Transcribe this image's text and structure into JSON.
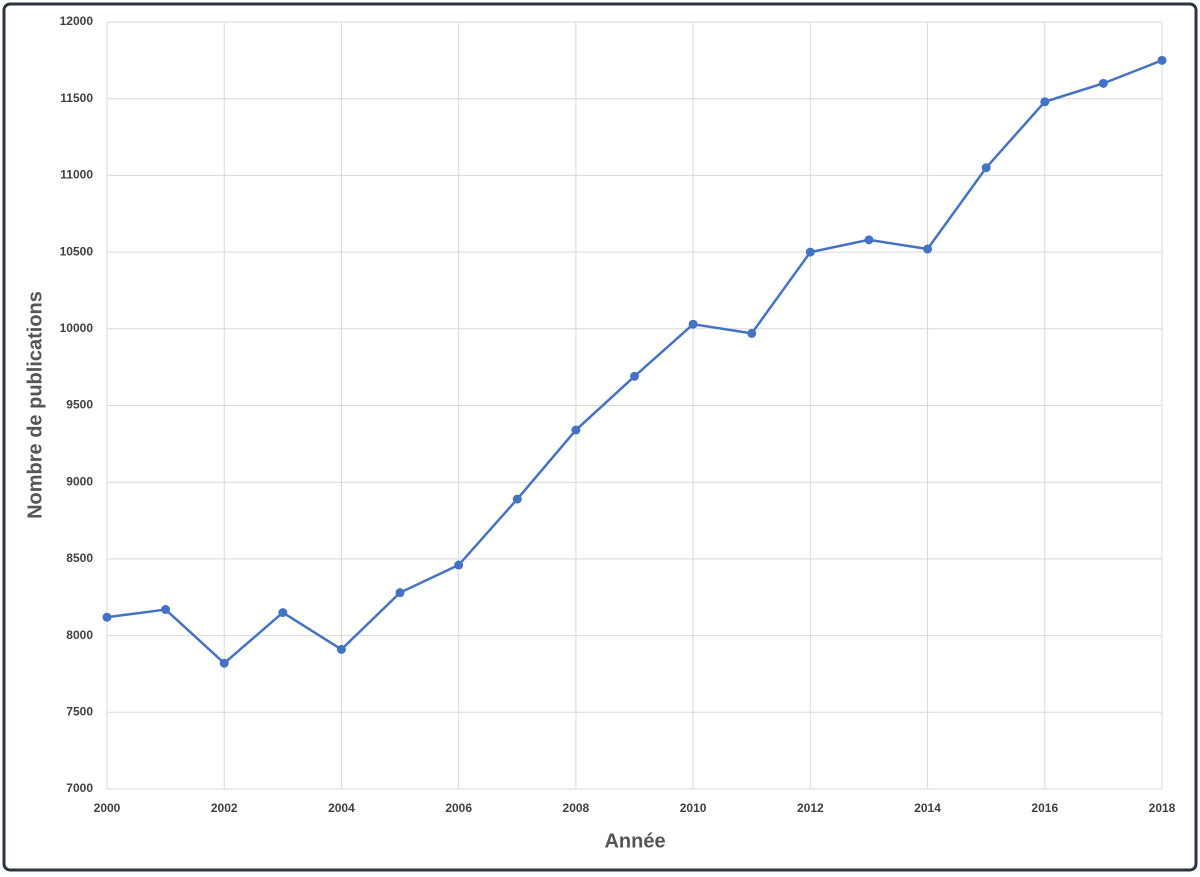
{
  "chart_data": {
    "type": "line",
    "x_label": "Année",
    "y_label": "Nombre de publications",
    "x": [
      2000,
      2001,
      2002,
      2003,
      2004,
      2005,
      2006,
      2007,
      2008,
      2009,
      2010,
      2011,
      2012,
      2013,
      2014,
      2015,
      2016,
      2017,
      2018
    ],
    "values": [
      8120,
      8170,
      7820,
      8150,
      7910,
      8280,
      8460,
      8890,
      9340,
      9690,
      10030,
      9970,
      10500,
      10580,
      10520,
      11050,
      11480,
      11600,
      11750
    ],
    "color": "#4472c4",
    "xlim": [
      2000,
      2018
    ],
    "xticks": [
      2000,
      2002,
      2004,
      2006,
      2008,
      2010,
      2012,
      2014,
      2016,
      2018
    ],
    "ylim": [
      7000,
      12000
    ],
    "yticks": [
      7000,
      7500,
      8000,
      8500,
      9000,
      9500,
      10000,
      10500,
      11000,
      11500,
      12000
    ],
    "grid": true
  }
}
